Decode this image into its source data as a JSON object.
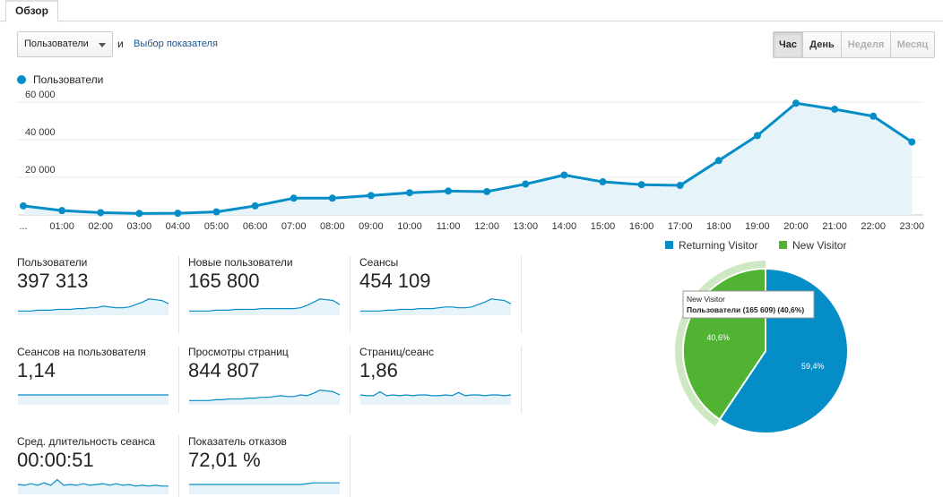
{
  "tabs": {
    "overview": "Обзор"
  },
  "toolbar": {
    "metric_select": "Пользователи",
    "and_text": "и",
    "choose_metric": "Выбор показателя",
    "periods": [
      "Час",
      "День",
      "Неделя",
      "Месяц"
    ],
    "active_period": "Час"
  },
  "legend": {
    "series_label": "Пользователи"
  },
  "colors": {
    "series": "#058dc7",
    "area": "#e6f4fa",
    "new_visitor": "#50b432",
    "returning": "#058dc7"
  },
  "chart_data": [
    {
      "type": "line",
      "title": "",
      "series": [
        {
          "name": "Пользователи",
          "values": [
            4800,
            2300,
            1200,
            800,
            900,
            1600,
            4800,
            8900,
            8900,
            10300,
            11800,
            12700,
            12400,
            16400,
            21200,
            17600,
            16100,
            15700,
            28900,
            42200,
            59400,
            56200,
            52500,
            38800
          ]
        }
      ],
      "categories": [
        "...",
        "01:00",
        "02:00",
        "03:00",
        "04:00",
        "05:00",
        "06:00",
        "07:00",
        "08:00",
        "09:00",
        "10:00",
        "11:00",
        "12:00",
        "13:00",
        "14:00",
        "15:00",
        "16:00",
        "17:00",
        "18:00",
        "19:00",
        "20:00",
        "21:00",
        "22:00",
        "23:00"
      ],
      "yticks": [
        20000,
        40000,
        60000
      ],
      "ytick_labels": [
        "20 000",
        "40 000",
        "60 000"
      ],
      "ylim": [
        0,
        60000
      ],
      "xlabel": "",
      "ylabel": ""
    },
    {
      "type": "pie",
      "legend": [
        "Returning Visitor",
        "New Visitor"
      ],
      "slices": [
        {
          "name": "Returning Visitor",
          "value": 59.4,
          "label": "59,4%"
        },
        {
          "name": "New Visitor",
          "value": 40.6,
          "label": "40,6%"
        }
      ],
      "tooltip": {
        "title": "New Visitor",
        "line": "Пользователи (165 609) (40,6%)"
      }
    }
  ],
  "metrics": [
    {
      "label": "Пользователи",
      "value": "397 313",
      "spark": [
        3,
        3,
        3,
        4,
        4,
        4,
        5,
        5,
        5,
        6,
        6,
        7,
        7,
        9,
        8,
        7,
        7,
        8,
        11,
        14,
        18,
        17,
        16,
        12
      ]
    },
    {
      "label": "Новые пользователи",
      "value": "165 800",
      "spark": [
        3,
        3,
        3,
        3,
        4,
        4,
        4,
        5,
        5,
        5,
        5,
        6,
        6,
        6,
        6,
        6,
        6,
        7,
        10,
        14,
        18,
        17,
        16,
        11
      ]
    },
    {
      "label": "Сеансы",
      "value": "454 109",
      "spark": [
        3,
        3,
        3,
        3,
        4,
        4,
        5,
        5,
        5,
        6,
        6,
        6,
        7,
        8,
        8,
        7,
        7,
        8,
        11,
        14,
        18,
        17,
        16,
        12
      ]
    },
    {
      "label": "Сеансов на пользователя",
      "value": "1,14",
      "spark": [
        10,
        10,
        10,
        10,
        10,
        10,
        10,
        10,
        10,
        10,
        10,
        10,
        10,
        10,
        10,
        10,
        10,
        10,
        10,
        10,
        10,
        10,
        10,
        10
      ]
    },
    {
      "label": "Просмотры страниц",
      "value": "844 807",
      "spark": [
        3,
        3,
        3,
        3,
        4,
        4,
        5,
        5,
        5,
        6,
        6,
        7,
        7,
        8,
        9,
        8,
        8,
        10,
        9,
        12,
        16,
        15,
        14,
        10
      ]
    },
    {
      "label": "Страниц/сеанс",
      "value": "1,86",
      "spark": [
        10,
        9,
        9,
        14,
        9,
        10,
        9,
        10,
        9,
        10,
        10,
        9,
        9,
        10,
        9,
        13,
        9,
        10,
        10,
        9,
        10,
        10,
        9,
        10
      ]
    },
    {
      "label": "Сред. длительность сеанса",
      "value": "00:00:51",
      "spark": [
        10,
        9,
        11,
        9,
        12,
        9,
        16,
        9,
        10,
        9,
        11,
        9,
        10,
        11,
        9,
        11,
        9,
        10,
        8,
        9,
        8,
        9,
        8,
        8
      ]
    },
    {
      "label": "Показатель отказов",
      "value": "72,01 %",
      "spark": [
        10,
        10,
        10,
        10,
        10,
        10,
        10,
        10,
        10,
        10,
        10,
        10,
        10,
        10,
        10,
        10,
        10,
        10,
        11,
        12,
        12,
        12,
        12,
        12
      ]
    }
  ]
}
